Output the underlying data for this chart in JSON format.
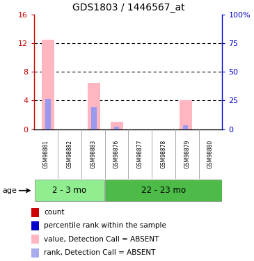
{
  "title": "GDS1803 / 1446567_at",
  "samples": [
    "GSM98881",
    "GSM98882",
    "GSM98883",
    "GSM98876",
    "GSM98877",
    "GSM98878",
    "GSM98879",
    "GSM98880"
  ],
  "pink_values": [
    12.5,
    0.0,
    6.5,
    1.0,
    0.0,
    0.0,
    4.0,
    0.0
  ],
  "blue_rank_values": [
    4.2,
    0.0,
    3.1,
    0.35,
    0.0,
    0.0,
    0.55,
    0.0
  ],
  "ylim_left": [
    0,
    16
  ],
  "ylim_right": [
    0,
    100
  ],
  "yticks_left": [
    0,
    4,
    8,
    12,
    16
  ],
  "ytick_labels_left": [
    "0",
    "4",
    "8",
    "12",
    "16"
  ],
  "yticks_right": [
    0,
    25,
    50,
    75,
    100
  ],
  "ytick_labels_right": [
    "0",
    "25",
    "50",
    "75",
    "100%"
  ],
  "left_axis_color": "#CC0000",
  "right_axis_color": "#0000CC",
  "bar_width": 0.55,
  "pink_color": "#FFB6C1",
  "blue_color": "#9999EE",
  "plot_bg": "#FFFFFF",
  "bg_color": "#FFFFFF",
  "grid_yticks": [
    4,
    8,
    12
  ],
  "group1_label": "2 - 3 mo",
  "group2_label": "22 - 23 mo",
  "group1_color": "#90EE90",
  "group2_color": "#4CBB47",
  "group1_n": 3,
  "group2_n": 5,
  "age_label": "age",
  "sample_bg": "#D3D3D3",
  "legend_items": [
    {
      "label": "count",
      "color": "#CC0000"
    },
    {
      "label": "percentile rank within the sample",
      "color": "#0000CC"
    },
    {
      "label": "value, Detection Call = ABSENT",
      "color": "#FFB6C1"
    },
    {
      "label": "rank, Detection Call = ABSENT",
      "color": "#AAAAEE"
    }
  ]
}
